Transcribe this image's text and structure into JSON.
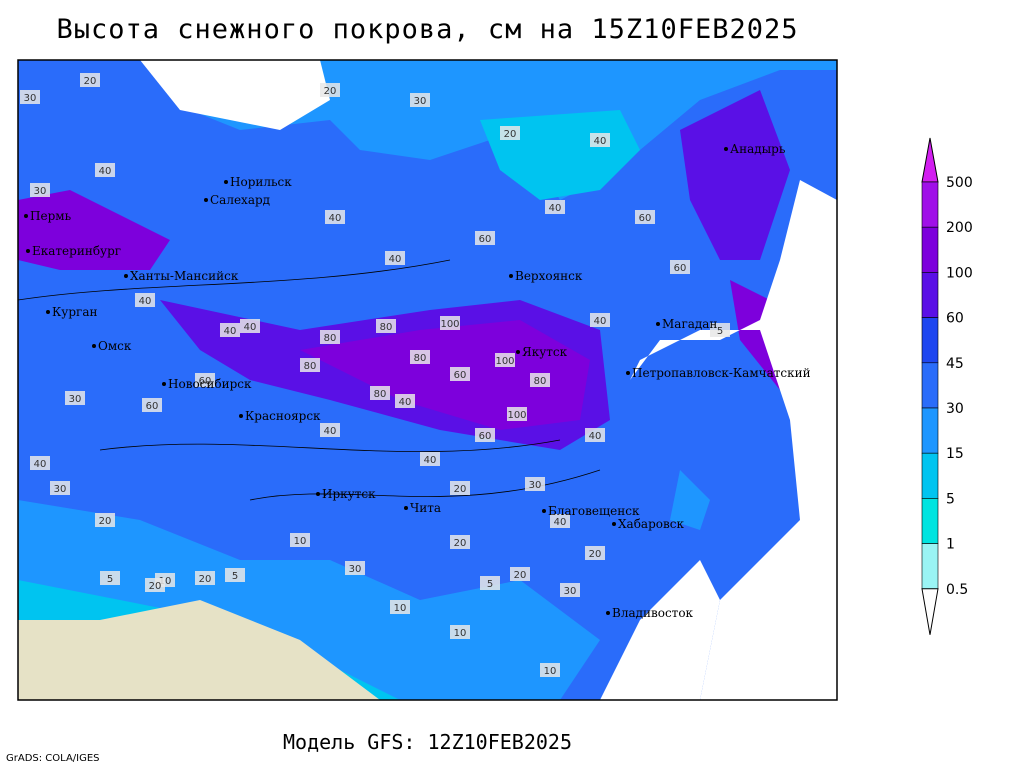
{
  "header": {
    "title": "Высота снежного покрова, см на 15Z10FEB2025"
  },
  "footer": {
    "model": "Модель GFS: 12Z10FEB2025",
    "credit": "GrADS: COLA/IGES"
  },
  "cities": [
    "Норильск",
    "Салехард",
    "Пермь",
    "Екатеринбург",
    "Ханты-Мансийск",
    "Верхоянск",
    "Курган",
    "Омск",
    "Новосибирск",
    "Красноярск",
    "Якутск",
    "Магадан",
    "Петропавловск-Камчатский",
    "Анадырь",
    "Иркутск",
    "Чита",
    "Благовещенск",
    "Хабаровск",
    "Владивосток"
  ],
  "contour_labels": [
    30,
    20,
    40,
    30,
    20,
    20,
    40,
    30,
    40,
    60,
    80,
    40,
    60,
    60,
    40,
    40,
    40,
    40,
    80,
    100,
    80,
    80,
    100,
    60,
    80,
    80,
    100,
    60,
    40,
    30,
    40,
    60,
    40,
    30,
    20,
    40,
    20,
    30,
    20,
    10,
    5,
    20,
    10,
    5,
    10,
    20,
    30,
    10,
    10,
    5,
    30,
    40,
    20,
    60,
    40,
    5,
    20,
    40
  ],
  "legend": {
    "levels": [
      500,
      200,
      100,
      60,
      45,
      30,
      15,
      5,
      1,
      0.5
    ],
    "colors": [
      "#d21ef0",
      "#a010e8",
      "#7d00dc",
      "#5a10e6",
      "#1e46f0",
      "#2a6cfa",
      "#1e96ff",
      "#00c4f0",
      "#00e4e0",
      "#9af4f4",
      "#ffffff"
    ]
  }
}
